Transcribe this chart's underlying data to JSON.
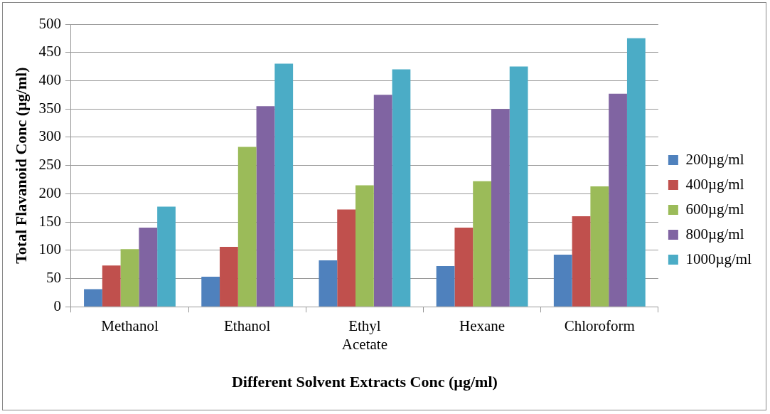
{
  "chart_data": {
    "type": "bar",
    "xlabel": "Different Solvent Extracts Conc (µg/ml)",
    "ylabel": "Total Flavanoid Conc (µg/ml)",
    "categories": [
      "Methanol",
      "Ethanol",
      "Ethyl Acetate",
      "Hexane",
      "Chloroform"
    ],
    "series": [
      {
        "name": "200µg/ml",
        "color": "#4f81bd",
        "values": [
          31,
          53,
          82,
          72,
          92
        ]
      },
      {
        "name": "400µg/ml",
        "color": "#c0504d",
        "values": [
          73,
          106,
          172,
          140,
          160
        ]
      },
      {
        "name": "600µg/ml",
        "color": "#9bbb59",
        "values": [
          102,
          283,
          215,
          222,
          213
        ]
      },
      {
        "name": "800µg/ml",
        "color": "#8064a2",
        "values": [
          140,
          355,
          375,
          350,
          377
        ]
      },
      {
        "name": "1000µg/ml",
        "color": "#4bacc6",
        "values": [
          177,
          430,
          420,
          425,
          475
        ]
      }
    ],
    "ylim": [
      0,
      500
    ],
    "yticks": [
      0,
      50,
      100,
      150,
      200,
      250,
      300,
      350,
      400,
      450,
      500
    ],
    "grid": "y",
    "legend": "right"
  }
}
